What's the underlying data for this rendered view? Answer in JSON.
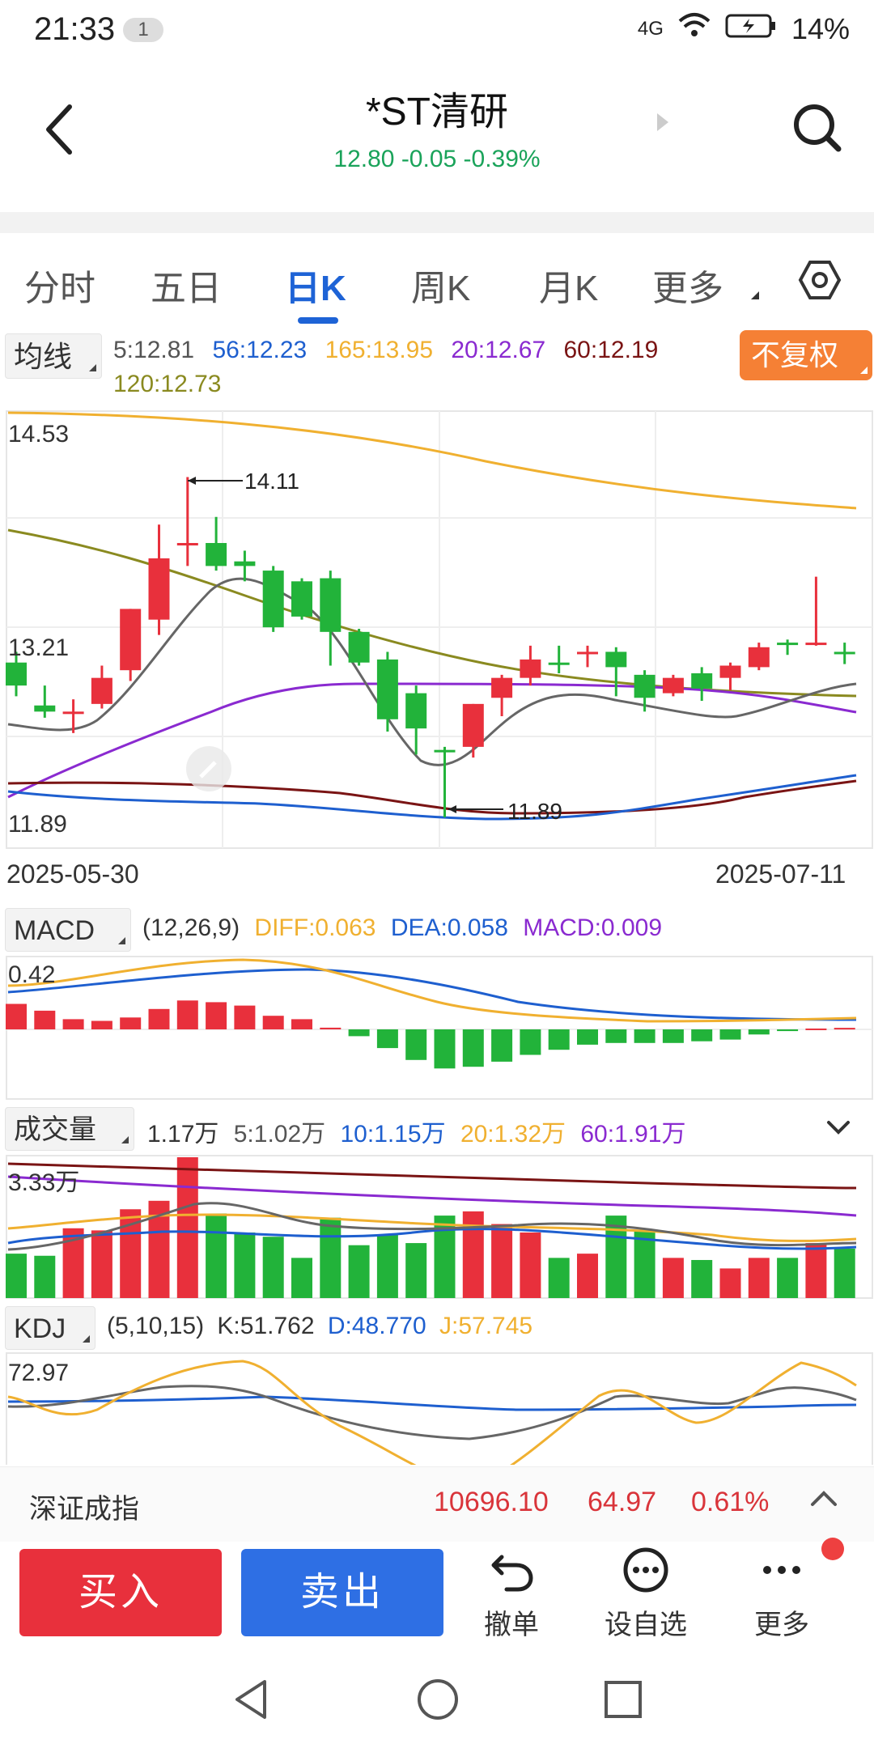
{
  "status_bar": {
    "time": "21:33",
    "notification_count": "1",
    "signal": "4G",
    "battery": "14%"
  },
  "header": {
    "title": "*ST清研",
    "price": "12.80",
    "change": "-0.05",
    "change_pct": "-0.39%"
  },
  "tabs": {
    "items": [
      "分时",
      "五日",
      "日K",
      "周K",
      "月K",
      "更多"
    ],
    "active": "日K"
  },
  "ma_legend": {
    "button": "均线",
    "items": [
      {
        "label": "5:12.81",
        "color": "#555555"
      },
      {
        "label": "56:12.23",
        "color": "#1e5fcf"
      },
      {
        "label": "165:13.95",
        "color": "#f0b030"
      },
      {
        "label": "20:12.67",
        "color": "#8a2ad0"
      },
      {
        "label": "60:12.19",
        "color": "#7a1414"
      },
      {
        "label": "120:12.73",
        "color": "#8a8a20"
      }
    ],
    "adjust_button": "不复权"
  },
  "main_chart": {
    "y_top_label": "14.53",
    "y_mid_label": "13.21",
    "y_bottom_label": "11.89",
    "high_annotation": "14.11",
    "low_annotation": "11.89",
    "date_start": "2025-05-30",
    "date_end": "2025-07-11"
  },
  "chart_data": [
    {
      "type": "candlestick",
      "title": "日K",
      "ylim": [
        11.89,
        14.53
      ],
      "candles": [
        {
          "open": 12.9,
          "close": 12.75,
          "high": 12.97,
          "low": 12.68
        },
        {
          "open": 12.62,
          "close": 12.58,
          "high": 12.75,
          "low": 12.54
        },
        {
          "open": 12.58,
          "close": 12.58,
          "high": 12.66,
          "low": 12.44
        },
        {
          "open": 12.63,
          "close": 12.8,
          "high": 12.88,
          "low": 12.6
        },
        {
          "open": 12.85,
          "close": 13.25,
          "high": 13.25,
          "low": 12.78
        },
        {
          "open": 13.18,
          "close": 13.58,
          "high": 13.8,
          "low": 13.08
        },
        {
          "open": 13.68,
          "close": 13.68,
          "high": 14.11,
          "low": 13.53
        },
        {
          "open": 13.68,
          "close": 13.53,
          "high": 13.85,
          "low": 13.5
        },
        {
          "open": 13.56,
          "close": 13.53,
          "high": 13.63,
          "low": 13.43
        },
        {
          "open": 13.5,
          "close": 13.13,
          "high": 13.53,
          "low": 13.1
        },
        {
          "open": 13.43,
          "close": 13.2,
          "high": 13.45,
          "low": 13.18
        },
        {
          "open": 13.45,
          "close": 13.1,
          "high": 13.5,
          "low": 12.88
        },
        {
          "open": 13.1,
          "close": 12.9,
          "high": 13.12,
          "low": 12.88
        },
        {
          "open": 12.92,
          "close": 12.53,
          "high": 12.97,
          "low": 12.45
        },
        {
          "open": 12.7,
          "close": 12.47,
          "high": 12.75,
          "low": 12.3
        },
        {
          "open": 12.33,
          "close": 12.33,
          "high": 12.35,
          "low": 11.89
        },
        {
          "open": 12.35,
          "close": 12.63,
          "high": 12.63,
          "low": 12.28
        },
        {
          "open": 12.67,
          "close": 12.8,
          "high": 12.82,
          "low": 12.55
        },
        {
          "open": 12.8,
          "close": 12.92,
          "high": 13.01,
          "low": 12.75
        },
        {
          "open": 12.9,
          "close": 12.9,
          "high": 13.01,
          "low": 12.83
        },
        {
          "open": 12.97,
          "close": 12.97,
          "high": 13.01,
          "low": 12.87
        },
        {
          "open": 12.97,
          "close": 12.87,
          "high": 13.0,
          "low": 12.68
        },
        {
          "open": 12.82,
          "close": 12.67,
          "high": 12.85,
          "low": 12.58
        },
        {
          "open": 12.7,
          "close": 12.8,
          "high": 12.82,
          "low": 12.68
        },
        {
          "open": 12.83,
          "close": 12.73,
          "high": 12.87,
          "low": 12.65
        },
        {
          "open": 12.8,
          "close": 12.88,
          "high": 12.9,
          "low": 12.72
        },
        {
          "open": 12.87,
          "close": 13.0,
          "high": 13.03,
          "low": 12.85
        },
        {
          "open": 13.03,
          "close": 13.03,
          "high": 13.05,
          "low": 12.95
        },
        {
          "open": 13.03,
          "close": 13.03,
          "high": 13.46,
          "low": 13.01
        },
        {
          "open": 12.97,
          "close": 12.97,
          "high": 13.03,
          "low": 12.89
        }
      ]
    },
    {
      "type": "bar",
      "title": "MACD",
      "params": "(12,26,9)",
      "ylim_top": 0.42,
      "values": [
        0.15,
        0.11,
        0.06,
        0.05,
        0.07,
        0.12,
        0.17,
        0.16,
        0.14,
        0.08,
        0.06,
        0.01,
        -0.04,
        -0.11,
        -0.18,
        -0.23,
        -0.22,
        -0.19,
        -0.15,
        -0.12,
        -0.09,
        -0.08,
        -0.08,
        -0.08,
        -0.07,
        -0.06,
        -0.03,
        -0.01,
        0.005,
        0.009
      ]
    },
    {
      "type": "bar",
      "title": "成交量",
      "unit": "万",
      "ylim_top": 3.33,
      "values": [
        1.05,
        1.0,
        1.65,
        1.6,
        2.1,
        2.3,
        3.33,
        2.0,
        1.55,
        1.45,
        0.95,
        1.9,
        1.25,
        1.5,
        1.3,
        1.95,
        2.05,
        1.75,
        1.55,
        0.95,
        1.05,
        1.95,
        1.6,
        0.95,
        0.9,
        0.7,
        0.95,
        0.95,
        1.3,
        1.17
      ]
    }
  ],
  "macd": {
    "button": "MACD",
    "params": "(12,26,9)",
    "diff": "DIFF:0.063",
    "dea": "DEA:0.058",
    "macd": "MACD:0.009",
    "y_label": "0.42"
  },
  "volume": {
    "button": "成交量",
    "total": "1.17万",
    "ma5": "5:1.02万",
    "ma10": "10:1.15万",
    "ma20": "20:1.32万",
    "ma60": "60:1.91万",
    "y_label": "3.33万"
  },
  "kdj": {
    "button": "KDJ",
    "params": "(5,10,15)",
    "k": "K:51.762",
    "d": "D:48.770",
    "j": "J:57.745",
    "y_label": "72.97"
  },
  "index_bar": {
    "name": "深证成指",
    "value": "10696.10",
    "change": "64.97",
    "change_pct": "0.61%"
  },
  "actions": {
    "buy": "买入",
    "sell": "卖出",
    "undo": "撤单",
    "watchlist": "设自选",
    "more": "更多"
  },
  "colors": {
    "up": "#e8303c",
    "down": "#22b33a",
    "accent": "#1e63d6",
    "adjust": "#f58035"
  }
}
